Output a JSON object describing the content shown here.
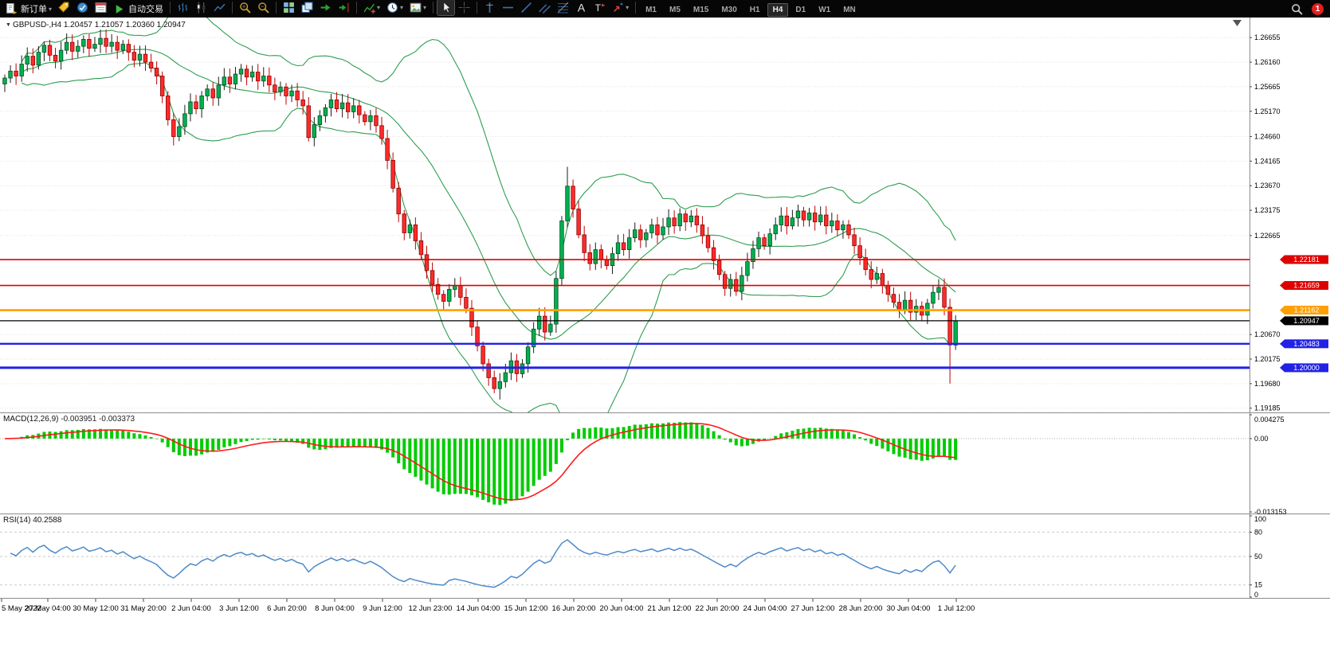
{
  "toolbar": {
    "new_order": {
      "label": "新订单"
    },
    "auto_trading": {
      "label": "自动交易"
    },
    "left_icons": [
      {
        "name": "price-tags-icon"
      },
      {
        "name": "market-watch-icon"
      },
      {
        "name": "data-window-icon"
      }
    ],
    "chart_icons": [
      "sep",
      {
        "name": "bar-chart-icon"
      },
      {
        "name": "candlestick-chart-icon"
      },
      {
        "name": "line-chart-icon"
      },
      "sep",
      {
        "name": "zoom-in-icon"
      },
      {
        "name": "zoom-out-icon"
      },
      "sep",
      {
        "name": "tile-windows-icon"
      },
      {
        "name": "cascade-windows-icon"
      },
      {
        "name": "auto-scroll-icon"
      },
      {
        "name": "chart-shift-icon"
      },
      "sep",
      {
        "name": "indicators-icon",
        "dropdown": true
      },
      {
        "name": "time-periods-icon",
        "dropdown": true
      },
      {
        "name": "templates-icon",
        "dropdown": true
      },
      "sep",
      {
        "name": "cursor-icon",
        "active": true
      },
      {
        "name": "crosshair-icon"
      },
      "sep",
      {
        "name": "vertical-line-icon"
      },
      {
        "name": "horizontal-line-icon"
      },
      {
        "name": "trendline-icon"
      },
      {
        "name": "channel-icon"
      },
      {
        "name": "fibonacci-icon"
      },
      {
        "name": "text-icon"
      },
      {
        "name": "text-label-icon"
      },
      {
        "name": "arrows-icon",
        "dropdown": true
      },
      "sep"
    ],
    "timeframes": [
      {
        "label": "M1"
      },
      {
        "label": "M5"
      },
      {
        "label": "M15"
      },
      {
        "label": "M30"
      },
      {
        "label": "H1"
      },
      {
        "label": "H4",
        "active": true
      },
      {
        "label": "D1"
      },
      {
        "label": "W1"
      },
      {
        "label": "MN"
      }
    ],
    "notification_count": "1"
  },
  "chart": {
    "symbol_label": "GBPUSD-,H4",
    "ohlc": "1.20457 1.21057 1.20360 1.20947"
  },
  "colors": {
    "up_candle": "#00b050",
    "down_candle": "#ff2b2b",
    "up_stroke": "#054d1e",
    "down_stroke": "#8f0000",
    "up_wick": "#1c1c1c",
    "down_wick": "#c00000",
    "bollinger": "#2e9e50",
    "macd_hist": "#00cc00",
    "macd_signal": "#ff1a1a",
    "rsi_line": "#4e8ac8",
    "grid": "#e3e3e3",
    "panel_border": "#8c8c8c",
    "axis_text": "#000000"
  },
  "chart_data": {
    "type": "candlestick",
    "symbol": "GBPUSD",
    "period": "H4",
    "last_ohlc": {
      "open": 1.20457,
      "high": 1.21057,
      "low": 1.2036,
      "close": 1.20947
    },
    "price_axis": {
      "min": 1.191,
      "max": 1.2706,
      "ticks": [
        "1.26655",
        "1.26160",
        "1.25665",
        "1.25170",
        "1.24660",
        "1.24165",
        "1.23670",
        "1.23175",
        "1.22665",
        "1.20670",
        "1.20175",
        "1.19680",
        "1.19185"
      ]
    },
    "horizontal_lines": [
      {
        "price": 1.22181,
        "label": "1.22181",
        "color": "#dd0000",
        "width": 1.6,
        "role": "resistance"
      },
      {
        "price": 1.21659,
        "label": "1.21659",
        "color": "#dd0000",
        "width": 1.6,
        "role": "resistance"
      },
      {
        "price": 1.21162,
        "label": "1.21162",
        "color": "#ff9f00",
        "width": 2.6,
        "role": "pivot"
      },
      {
        "price": 1.20947,
        "label": "1.20947",
        "color": "#000000",
        "width": 1.3,
        "role": "current-price"
      },
      {
        "price": 1.20483,
        "label": "1.20483",
        "color": "#2222e6",
        "width": 2.4,
        "role": "support"
      },
      {
        "price": 1.2,
        "label": "1.20000",
        "color": "#2222e6",
        "width": 3,
        "role": "support"
      }
    ],
    "main": {
      "first_open": 1.2572,
      "bollinger": {
        "period": 20,
        "deviation": 2
      },
      "closes": [
        1.2584,
        1.2598,
        1.2588,
        1.2612,
        1.2628,
        1.261,
        1.2636,
        1.265,
        1.263,
        1.2618,
        1.264,
        1.2656,
        1.2638,
        1.2648,
        1.2662,
        1.2644,
        1.2652,
        1.2664,
        1.2648,
        1.2656,
        1.264,
        1.2652,
        1.2636,
        1.262,
        1.2632,
        1.2616,
        1.2604,
        1.2588,
        1.2548,
        1.25,
        1.2466,
        1.2486,
        1.2512,
        1.2536,
        1.2522,
        1.2548,
        1.2562,
        1.2544,
        1.257,
        1.2586,
        1.2572,
        1.2592,
        1.2602,
        1.2586,
        1.2596,
        1.2578,
        1.2588,
        1.257,
        1.2556,
        1.2566,
        1.2548,
        1.2558,
        1.254,
        1.2528,
        1.2464,
        1.249,
        1.2508,
        1.2524,
        1.254,
        1.2522,
        1.2534,
        1.2516,
        1.2528,
        1.251,
        1.2496,
        1.2508,
        1.2488,
        1.2462,
        1.2418,
        1.2362,
        1.231,
        1.2272,
        1.2288,
        1.2256,
        1.2228,
        1.2196,
        1.2168,
        1.2148,
        1.2134,
        1.2158,
        1.2166,
        1.2142,
        1.212,
        1.2082,
        1.2044,
        1.2008,
        1.198,
        1.1958,
        1.1972,
        1.199,
        1.2014,
        1.1988,
        1.2008,
        1.2042,
        1.2078,
        1.2104,
        1.2072,
        1.2088,
        1.218,
        1.2296,
        1.2366,
        1.232,
        1.2268,
        1.2232,
        1.221,
        1.2238,
        1.2218,
        1.2206,
        1.223,
        1.2252,
        1.2238,
        1.2262,
        1.2278,
        1.2258,
        1.2272,
        1.2288,
        1.2268,
        1.2284,
        1.2302,
        1.2286,
        1.231,
        1.2294,
        1.2306,
        1.2288,
        1.2266,
        1.2242,
        1.2216,
        1.2188,
        1.216,
        1.2178,
        1.2154,
        1.2186,
        1.2214,
        1.224,
        1.2262,
        1.2246,
        1.227,
        1.2288,
        1.2306,
        1.2286,
        1.2302,
        1.2316,
        1.2298,
        1.2312,
        1.2294,
        1.2308,
        1.2286,
        1.2296,
        1.2278,
        1.2288,
        1.2268,
        1.2246,
        1.2222,
        1.2198,
        1.2178,
        1.219,
        1.2166,
        1.2148,
        1.2132,
        1.2118,
        1.2136,
        1.2112,
        1.2124,
        1.2106,
        1.213,
        1.2152,
        1.2162,
        1.2122,
        1.2046,
        1.20947
      ],
      "overrides": {
        "88": {
          "l": 1.1936
        },
        "100": {
          "h": 1.2405
        },
        "168": {
          "l": 1.1968
        },
        "169": {
          "o": 1.20457,
          "h": 1.21057,
          "l": 1.2036,
          "c": 1.20947
        }
      }
    },
    "macd": {
      "title": "MACD(12,26,9)",
      "value_main": "-0.003951",
      "value_signal": "-0.003373",
      "fast": 12,
      "slow": 26,
      "signal": 9,
      "axis_max": 0.004275,
      "axis_min": -0.013153,
      "axis_labels": [
        "0.004275",
        "0.00",
        "-0.013153"
      ]
    },
    "rsi": {
      "title": "RSI(14)",
      "value": "40.2588",
      "period": 14,
      "axis_labels": [
        "100",
        "80",
        "50",
        "15",
        "0"
      ],
      "levels": [
        80,
        50,
        15
      ]
    },
    "time_labels": [
      "5 May 2022",
      "27 May 04:00",
      "30 May 12:00",
      "31 May 20:00",
      "2 Jun 04:00",
      "3 Jun 12:00",
      "6 Jun 20:00",
      "8 Jun 04:00",
      "9 Jun 12:00",
      "12 Jun 23:00",
      "14 Jun 04:00",
      "15 Jun 12:00",
      "16 Jun 20:00",
      "20 Jun 04:00",
      "21 Jun 12:00",
      "22 Jun 20:00",
      "24 Jun 04:00",
      "27 Jun 12:00",
      "28 Jun 20:00",
      "30 Jun 04:00",
      "1 Jul 12:00"
    ]
  }
}
